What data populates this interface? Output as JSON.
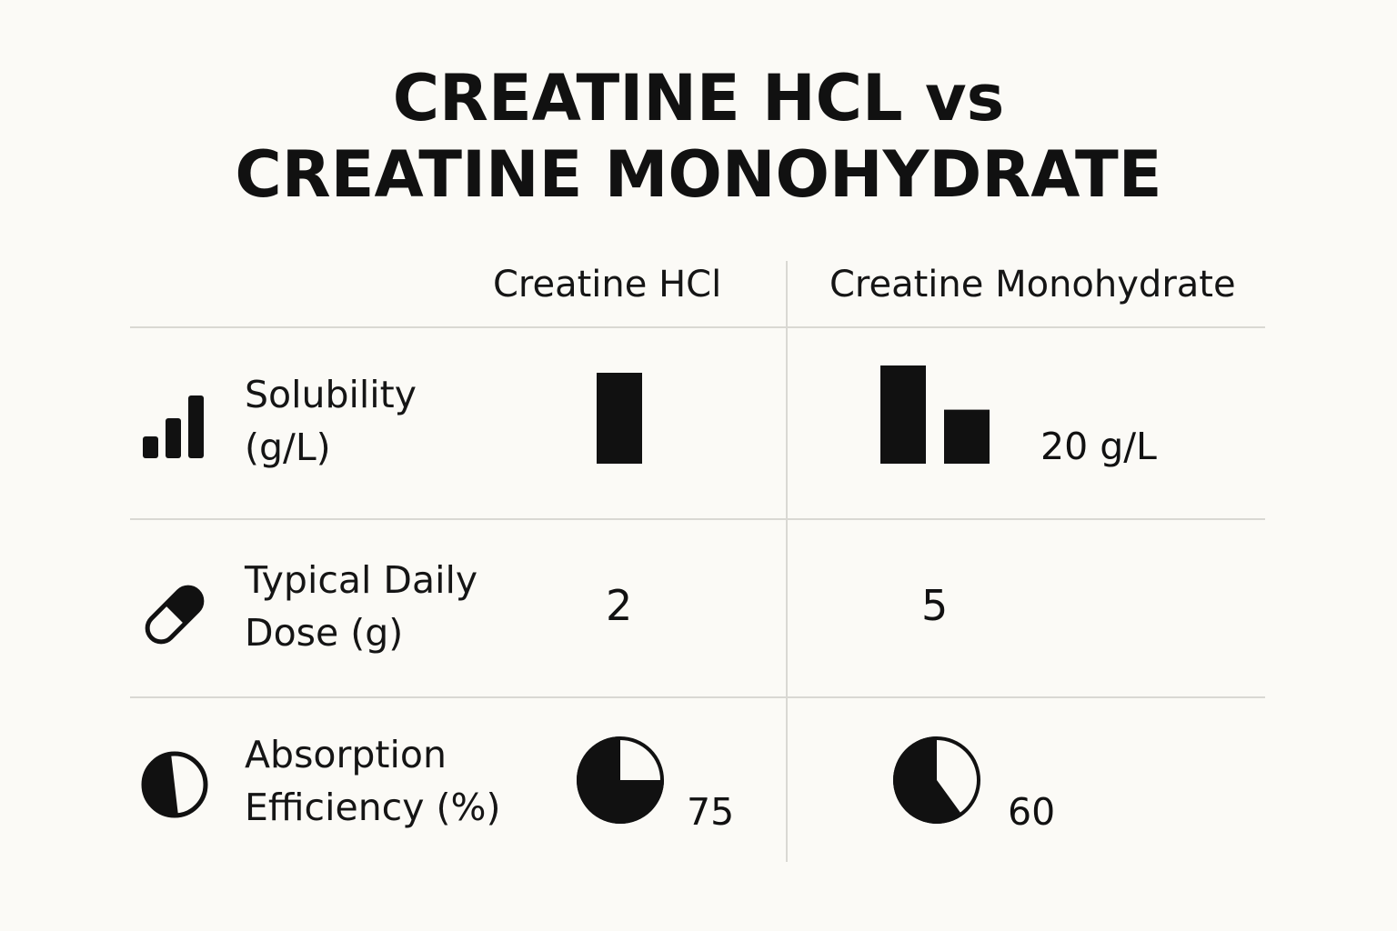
{
  "title": {
    "line1": "CREATINE HCL vs",
    "line2": "CREATINE MONOHYDRATE"
  },
  "columns": [
    "Creatine HCl",
    "Creatine Monohydrate"
  ],
  "rows": [
    {
      "label_line1": "Solubility",
      "label_line2": "(g/L)",
      "icon": "bar-chart-icon",
      "hcl_display": "",
      "monohydrate_display": "20 g/L",
      "hcl_bar_levels": [
        1.0
      ],
      "monohydrate_bar_levels": [
        1.0,
        0.55
      ]
    },
    {
      "label_line1": "Typical Daily",
      "label_line2": "Dose (g)",
      "icon": "capsule-icon",
      "hcl_display": "2",
      "monohydrate_display": "5"
    },
    {
      "label_line1": "Absorption",
      "label_line2": "Efficiency (%)",
      "icon": "half-circle-icon",
      "hcl_display": "75",
      "monohydrate_display": "60",
      "hcl_fraction": 0.75,
      "monohydrate_fraction": 0.6
    }
  ],
  "colors": {
    "background": "#fbfaf6",
    "ink": "#111111",
    "grid": "#d9d8d3"
  }
}
